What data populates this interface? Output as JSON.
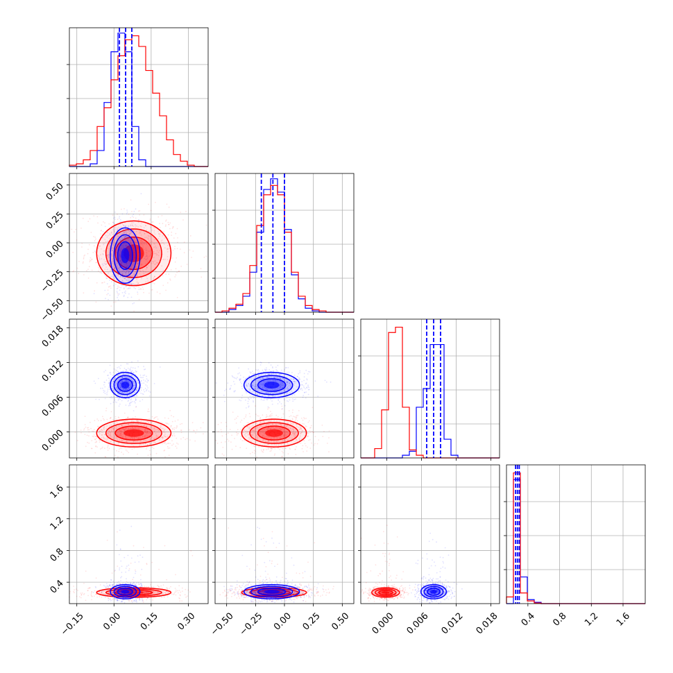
{
  "chart_data": {
    "type": "corner",
    "grid": true,
    "colors": {
      "red": "#ff0000",
      "blue": "#0000ff"
    },
    "parameters": [
      {
        "range": [
          -0.18,
          0.38
        ],
        "ticks": [
          -0.15,
          0.0,
          0.15,
          0.3
        ],
        "tick_labels": [
          "−0.15",
          "0.00",
          "0.15",
          "0.30"
        ]
      },
      {
        "range": [
          -0.6,
          0.6
        ],
        "ticks": [
          -0.5,
          -0.25,
          0.0,
          0.25,
          0.5
        ],
        "tick_labels": [
          "−0.50",
          "−0.25",
          "0.00",
          "0.25",
          "0.50"
        ]
      },
      {
        "range": [
          -0.0045,
          0.0195
        ],
        "ticks": [
          0.0,
          0.006,
          0.012,
          0.018
        ],
        "tick_labels": [
          "0.000",
          "0.006",
          "0.012",
          "0.018"
        ]
      },
      {
        "range": [
          0.13,
          1.88
        ],
        "ticks": [
          0.4,
          0.8,
          1.2,
          1.6
        ],
        "tick_labels": [
          "0.4",
          "0.8",
          "1.2",
          "1.6"
        ]
      }
    ],
    "series": [
      {
        "color": "red",
        "mean": [
          0.08,
          -0.09,
          -0.0002,
          0.27
        ],
        "std": [
          0.075,
          0.14,
          0.0012,
          0.03
        ]
      },
      {
        "color": "blue",
        "mean": [
          0.045,
          -0.11,
          0.0081,
          0.28
        ],
        "std": [
          0.03,
          0.12,
          0.0011,
          0.045
        ]
      }
    ],
    "histograms": [
      {
        "bins": [
          -0.18,
          -0.152,
          -0.124,
          -0.096,
          -0.068,
          -0.04,
          -0.012,
          0.016,
          0.044,
          0.072,
          0.1,
          0.128,
          0.156,
          0.184,
          0.212,
          0.24,
          0.268,
          0.296,
          0.324,
          0.352,
          0.38
        ],
        "red": [
          0.01,
          0.02,
          0.05,
          0.12,
          0.3,
          0.44,
          0.65,
          0.83,
          0.95,
          0.98,
          0.9,
          0.72,
          0.55,
          0.38,
          0.2,
          0.09,
          0.04,
          0.01,
          0.0,
          0.0
        ],
        "blue": [
          0.0,
          0.0,
          0.0,
          0.02,
          0.12,
          0.48,
          0.86,
          1.0,
          0.86,
          0.3,
          0.05,
          0.0,
          0.0,
          0.0,
          0.0,
          0.0,
          0.0,
          0.0,
          0.0,
          0.0
        ],
        "quantiles": [
          0.022,
          0.047,
          0.072
        ]
      },
      {
        "bins": [
          -0.6,
          -0.54,
          -0.48,
          -0.42,
          -0.36,
          -0.3,
          -0.24,
          -0.18,
          -0.12,
          -0.06,
          0.0,
          0.06,
          0.12,
          0.18,
          0.24,
          0.3,
          0.36,
          0.42,
          0.48,
          0.54,
          0.6
        ],
        "red": [
          0.0,
          0.01,
          0.03,
          0.06,
          0.14,
          0.35,
          0.65,
          0.88,
          0.95,
          0.88,
          0.6,
          0.3,
          0.12,
          0.05,
          0.02,
          0.01,
          0.0,
          0.0,
          0.0,
          0.0
        ],
        "blue": [
          0.0,
          0.0,
          0.02,
          0.05,
          0.12,
          0.3,
          0.6,
          0.92,
          1.0,
          0.9,
          0.62,
          0.28,
          0.1,
          0.03,
          0.01,
          0.0,
          0.0,
          0.0,
          0.0,
          0.0
        ],
        "quantiles": [
          -0.2,
          -0.1,
          0.0
        ]
      },
      {
        "bins": [
          -0.0045,
          -0.0033,
          -0.0021,
          -0.0009,
          0.0003,
          0.0015,
          0.0027,
          0.0039,
          0.0051,
          0.0063,
          0.0075,
          0.0087,
          0.0099,
          0.0111,
          0.0123,
          0.0135,
          0.0147,
          0.0159,
          0.0171,
          0.0183,
          0.0195
        ],
        "red": [
          0.0,
          0.0,
          0.07,
          0.36,
          0.94,
          0.98,
          0.38,
          0.06,
          0.02,
          0.0,
          0.0,
          0.0,
          0.0,
          0.0,
          0.0,
          0.0,
          0.0,
          0.0,
          0.0,
          0.0
        ],
        "blue": [
          0.0,
          0.0,
          0.0,
          0.0,
          0.0,
          0.0,
          0.02,
          0.05,
          0.38,
          0.52,
          0.85,
          0.85,
          0.14,
          0.02,
          0.0,
          0.0,
          0.0,
          0.0,
          0.0,
          0.0
        ],
        "quantiles": [
          0.0069,
          0.0081,
          0.0093
        ]
      },
      {
        "bins": [
          0.13,
          0.2175,
          0.305,
          0.3925,
          0.48,
          0.5675,
          0.655,
          0.7425,
          0.83,
          0.9175,
          1.005,
          1.0925,
          1.18,
          1.2675,
          1.355,
          1.4425,
          1.53,
          1.6175,
          1.705,
          1.7925,
          1.88
        ],
        "red": [
          0.05,
          0.98,
          0.08,
          0.02,
          0.005,
          0.0,
          0.0,
          0.0,
          0.0,
          0.0,
          0.0,
          0.0,
          0.0,
          0.0,
          0.0,
          0.0,
          0.0,
          0.0,
          0.0,
          0.0
        ],
        "blue": [
          0.0,
          0.93,
          0.2,
          0.03,
          0.01,
          0.0,
          0.0,
          0.0,
          0.0,
          0.0,
          0.0,
          0.0,
          0.0,
          0.0,
          0.0,
          0.0,
          0.0,
          0.0,
          0.0,
          0.0
        ],
        "quantiles": [
          0.245,
          0.268,
          0.291
        ]
      }
    ]
  }
}
